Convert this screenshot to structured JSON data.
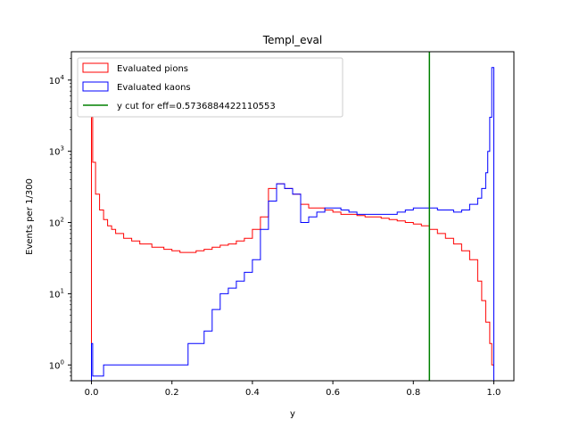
{
  "chart_data": {
    "type": "line",
    "title": "Templ_eval",
    "xlabel": "y",
    "ylabel": "Events per 1/300",
    "xlim": [
      -0.05,
      1.05
    ],
    "ylim": [
      0.6,
      25000
    ],
    "yscale": "log",
    "grid": false,
    "legend_position": "top-left",
    "x_ticks": [
      "0.0",
      "0.2",
      "0.4",
      "0.6",
      "0.8",
      "1.0"
    ],
    "y_ticks": [
      "10^0",
      "10^1",
      "10^2",
      "10^3",
      "10^4"
    ],
    "series": [
      {
        "name": "Evaluated pions",
        "color": "#ff0000",
        "style": "step",
        "x": [
          0.0,
          0.003,
          0.01,
          0.02,
          0.03,
          0.04,
          0.05,
          0.06,
          0.08,
          0.1,
          0.12,
          0.15,
          0.18,
          0.2,
          0.22,
          0.24,
          0.26,
          0.28,
          0.3,
          0.32,
          0.34,
          0.36,
          0.38,
          0.4,
          0.42,
          0.44,
          0.46,
          0.48,
          0.5,
          0.52,
          0.54,
          0.56,
          0.58,
          0.6,
          0.62,
          0.64,
          0.66,
          0.68,
          0.7,
          0.72,
          0.74,
          0.76,
          0.78,
          0.8,
          0.82,
          0.84,
          0.86,
          0.88,
          0.9,
          0.92,
          0.94,
          0.96,
          0.97,
          0.98,
          0.99,
          0.995,
          1.0
        ],
        "y": [
          3000,
          700,
          250,
          150,
          110,
          90,
          80,
          70,
          60,
          55,
          50,
          45,
          42,
          40,
          38,
          38,
          40,
          42,
          45,
          48,
          50,
          55,
          60,
          80,
          120,
          300,
          350,
          300,
          250,
          180,
          160,
          160,
          150,
          140,
          130,
          130,
          125,
          120,
          120,
          115,
          110,
          105,
          100,
          95,
          90,
          80,
          70,
          60,
          50,
          40,
          30,
          15,
          8,
          4,
          2,
          1,
          0.7
        ]
      },
      {
        "name": "Evaluated kaons",
        "color": "#0000ff",
        "style": "step",
        "x": [
          0.0,
          0.003,
          0.03,
          0.05,
          0.08,
          0.1,
          0.12,
          0.14,
          0.16,
          0.18,
          0.2,
          0.22,
          0.24,
          0.26,
          0.28,
          0.3,
          0.32,
          0.34,
          0.36,
          0.38,
          0.4,
          0.42,
          0.44,
          0.46,
          0.48,
          0.5,
          0.52,
          0.54,
          0.56,
          0.58,
          0.6,
          0.62,
          0.64,
          0.66,
          0.68,
          0.7,
          0.72,
          0.74,
          0.76,
          0.78,
          0.8,
          0.82,
          0.84,
          0.86,
          0.88,
          0.9,
          0.92,
          0.94,
          0.96,
          0.97,
          0.98,
          0.985,
          0.99,
          0.995,
          1.0
        ],
        "y": [
          2,
          0.7,
          1,
          1,
          1,
          1,
          1,
          1,
          1,
          1,
          1,
          1,
          2,
          2,
          3,
          6,
          10,
          12,
          15,
          20,
          30,
          80,
          200,
          350,
          300,
          250,
          100,
          120,
          140,
          160,
          160,
          150,
          140,
          130,
          130,
          130,
          130,
          130,
          140,
          150,
          160,
          160,
          160,
          150,
          150,
          140,
          150,
          180,
          220,
          300,
          500,
          1000,
          3000,
          15000,
          0.7
        ]
      }
    ],
    "vertical_lines": [
      {
        "name": "y cut for eff=0.5736884422110553",
        "x": 0.84,
        "color": "#008000"
      }
    ]
  }
}
